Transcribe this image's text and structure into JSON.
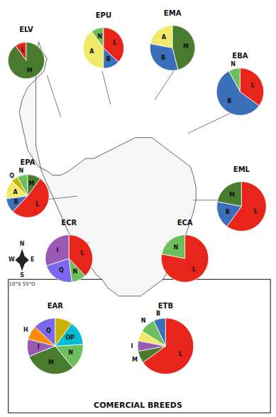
{
  "title": "COMERCIAL BREEDS",
  "annotations": [
    "N",
    "S",
    "E",
    "W",
    "10°S 55°O"
  ],
  "chart_data": [
    {
      "type": "pie",
      "title": "ELV",
      "categories": [
        "L",
        "M"
      ],
      "values": [
        10,
        90
      ],
      "colors": [
        "#e8251a",
        "#4a7c2f"
      ]
    },
    {
      "type": "pie",
      "title": "EPU",
      "categories": [
        "N",
        "A",
        "B",
        "L"
      ],
      "values": [
        10,
        40,
        13,
        37
      ],
      "colors": [
        "#6dbf5e",
        "#f0ea6a",
        "#3b6fba",
        "#e8251a"
      ]
    },
    {
      "type": "pie",
      "title": "EMA",
      "categories": [
        "A",
        "B",
        "M"
      ],
      "values": [
        22,
        32,
        46
      ],
      "colors": [
        "#f0ea6a",
        "#3b6fba",
        "#4a7c2f"
      ]
    },
    {
      "type": "pie",
      "title": "EBA",
      "categories": [
        "N",
        "B",
        "L"
      ],
      "values": [
        8,
        57,
        35
      ],
      "colors": [
        "#6dbf5e",
        "#3b6fba",
        "#e8251a"
      ]
    },
    {
      "type": "pie",
      "title": "EPA",
      "categories": [
        "N",
        "Q",
        "A",
        "B",
        "L",
        "M"
      ],
      "values": [
        8,
        5,
        14,
        11,
        52,
        10
      ],
      "colors": [
        "#6dbf5e",
        "#c8b400",
        "#f0ea6a",
        "#3b6fba",
        "#e8251a",
        "#4a7c2f"
      ]
    },
    {
      "type": "pie",
      "title": "EML",
      "categories": [
        "M",
        "B",
        "L"
      ],
      "values": [
        22,
        18,
        60
      ],
      "colors": [
        "#4a7c2f",
        "#3b6fba",
        "#e8251a"
      ]
    },
    {
      "type": "pie",
      "title": "ECR",
      "categories": [
        "I",
        "Q",
        "N",
        "L"
      ],
      "values": [
        30,
        22,
        10,
        38
      ],
      "colors": [
        "#9b59b6",
        "#7b68ee",
        "#6dbf5e",
        "#e8251a"
      ]
    },
    {
      "type": "pie",
      "title": "ECA",
      "categories": [
        "N",
        "L"
      ],
      "values": [
        22,
        78
      ],
      "colors": [
        "#6dbf5e",
        "#e8251a"
      ]
    },
    {
      "type": "pie",
      "title": "EAR",
      "categories": [
        "Q",
        "H",
        "I",
        "M",
        "N",
        "OP",
        null
      ],
      "values": [
        13,
        8,
        10,
        30,
        15,
        14,
        10
      ],
      "colors": [
        "#7b68ee",
        "#ff8c00",
        "#9b59b6",
        "#4a7c2f",
        "#6dbf5e",
        "#00bcd4",
        "#c8b400"
      ]
    },
    {
      "type": "pie",
      "title": "ETB",
      "categories": [
        "B",
        "N",
        null,
        "I",
        "M",
        "L"
      ],
      "values": [
        7,
        9,
        6,
        6,
        7,
        65
      ],
      "colors": [
        "#3b6fba",
        "#6dbf5e",
        "#f0ea6a",
        "#9b59b6",
        "#4a7c2f",
        "#e8251a"
      ]
    }
  ]
}
